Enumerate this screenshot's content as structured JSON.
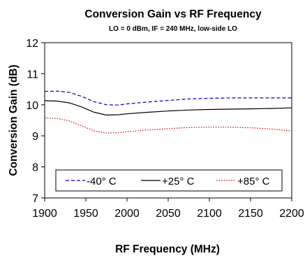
{
  "chart_data": {
    "type": "line",
    "title": "Conversion Gain vs RF Frequency",
    "subtitle": "LO = 0 dBm, IF = 240 MHz, low-side LO",
    "xlabel": "RF Frequency (MHz)",
    "ylabel": "Conversion Gain (dB)",
    "xlim": [
      1900,
      2200
    ],
    "ylim": [
      7,
      12
    ],
    "x_ticks": [
      1900,
      1950,
      2000,
      2050,
      2100,
      2150,
      2200
    ],
    "y_ticks": [
      7,
      8,
      9,
      10,
      11,
      12
    ],
    "grid": false,
    "legend_placement": "bottom",
    "series": [
      {
        "name": "-40° C",
        "color": "#0000cc",
        "style": "dashed",
        "x": [
          1900,
          1915,
          1930,
          1945,
          1960,
          1975,
          1990,
          2000,
          2025,
          2050,
          2075,
          2100,
          2125,
          2150,
          2175,
          2200
        ],
        "y": [
          10.43,
          10.44,
          10.4,
          10.27,
          10.1,
          10.0,
          9.99,
          10.03,
          10.09,
          10.14,
          10.19,
          10.21,
          10.22,
          10.22,
          10.22,
          10.22
        ]
      },
      {
        "name": "+25° C",
        "color": "#000000",
        "style": "solid",
        "x": [
          1900,
          1915,
          1930,
          1945,
          1960,
          1975,
          1990,
          2000,
          2025,
          2050,
          2075,
          2100,
          2125,
          2150,
          2175,
          2200
        ],
        "y": [
          10.13,
          10.12,
          10.06,
          9.93,
          9.76,
          9.67,
          9.68,
          9.71,
          9.76,
          9.8,
          9.83,
          9.85,
          9.86,
          9.87,
          9.88,
          9.9
        ]
      },
      {
        "name": "+85° C",
        "color": "#cc0000",
        "style": "dotted",
        "x": [
          1900,
          1915,
          1930,
          1945,
          1960,
          1975,
          1990,
          2000,
          2025,
          2050,
          2075,
          2100,
          2125,
          2150,
          2175,
          2200
        ],
        "y": [
          9.58,
          9.56,
          9.48,
          9.32,
          9.16,
          9.09,
          9.1,
          9.13,
          9.19,
          9.23,
          9.27,
          9.28,
          9.28,
          9.26,
          9.22,
          9.16
        ]
      }
    ]
  }
}
